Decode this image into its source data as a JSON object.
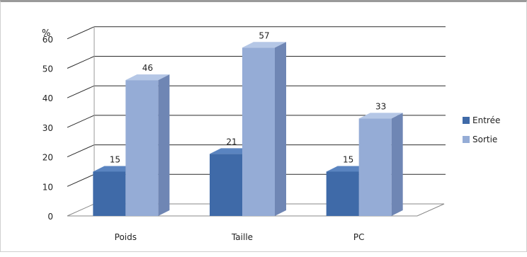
{
  "chart_data": {
    "type": "bar",
    "three_d": true,
    "unit_label": "%",
    "categories": [
      "Poids",
      "Taille",
      "PC"
    ],
    "series": [
      {
        "name": "Entrée",
        "values": [
          15,
          21,
          15
        ]
      },
      {
        "name": "Sortie",
        "values": [
          46,
          57,
          33
        ]
      }
    ],
    "ylim": [
      0,
      60
    ],
    "yticks": [
      0,
      10,
      20,
      30,
      40,
      50,
      60
    ],
    "grid": true,
    "legend": "right",
    "colors": {
      "Entrée": {
        "front": "#3f6aa8",
        "side": "#294b7c",
        "top": "#5a84c0"
      },
      "Sortie": {
        "front": "#95acd6",
        "side": "#6f86b4",
        "top": "#b5c7e6"
      },
      "grid": "#2b2b2b",
      "floor": "#888888"
    }
  }
}
